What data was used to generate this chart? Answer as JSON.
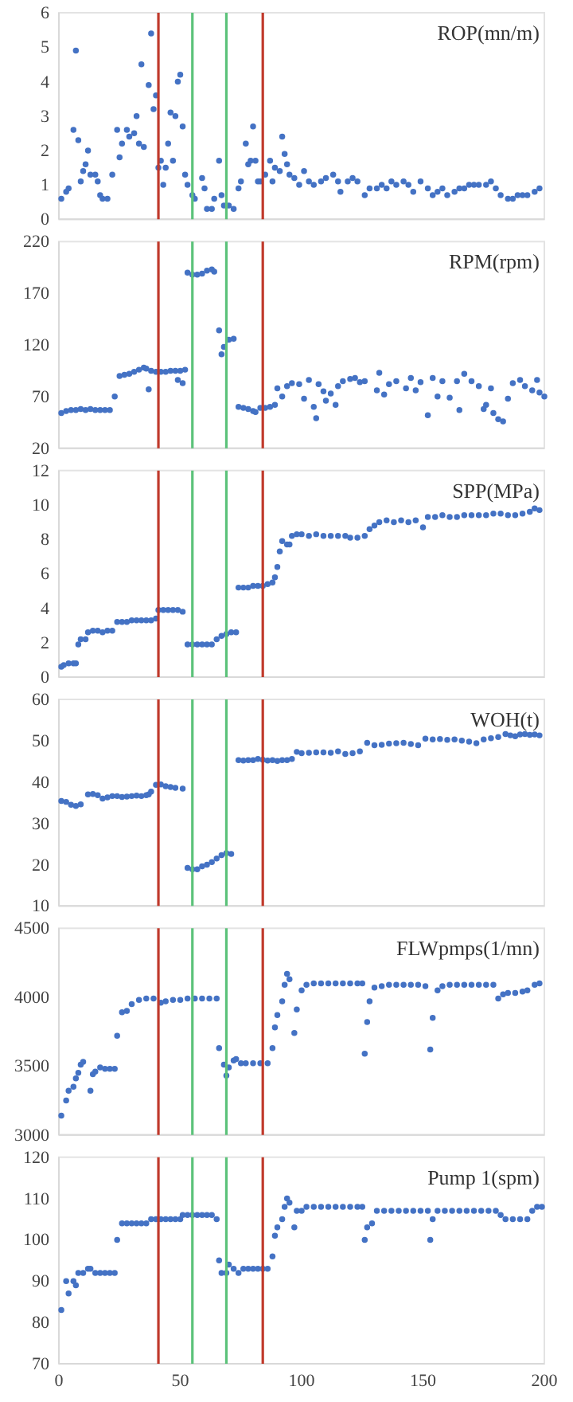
{
  "chart_data": [
    {
      "type": "scatter",
      "title": "ROP(mn/m)",
      "color": "#4472c4",
      "marker": "circle",
      "xlim": [
        0,
        200
      ],
      "xticks": [
        0,
        50,
        100,
        150,
        200
      ],
      "ylim": [
        0,
        6
      ],
      "yticks": [
        0,
        1,
        2,
        3,
        4,
        5,
        6
      ],
      "tick_labels": "y",
      "x": [
        1,
        3,
        4,
        6,
        7,
        8,
        9,
        10,
        11,
        12,
        13,
        15,
        16,
        17,
        18,
        20,
        22,
        24,
        25,
        26,
        28,
        29,
        31,
        32,
        33,
        34,
        35,
        37,
        38,
        39,
        40,
        41,
        42,
        43,
        44,
        45,
        46,
        47,
        48,
        49,
        50,
        51,
        52,
        53,
        55,
        56,
        59,
        60,
        61,
        63,
        64,
        66,
        67,
        68,
        70,
        72,
        74,
        75,
        77,
        78,
        79,
        80,
        81,
        82,
        83,
        85,
        87,
        88,
        89,
        91,
        92,
        93,
        94,
        95,
        97,
        99,
        101,
        103,
        105,
        108,
        110,
        113,
        115,
        116,
        119,
        121,
        123,
        126,
        128,
        131,
        133,
        135,
        137,
        139,
        142,
        144,
        146,
        149,
        152,
        154,
        156,
        158,
        160,
        163,
        165,
        167,
        169,
        171,
        173,
        176,
        178,
        180,
        182,
        185,
        187,
        189,
        191,
        193,
        196,
        198
      ],
      "values": [
        0.6,
        0.8,
        0.9,
        2.6,
        4.9,
        2.3,
        1.1,
        1.4,
        1.6,
        2.0,
        1.3,
        1.3,
        1.1,
        0.7,
        0.6,
        0.6,
        1.3,
        2.6,
        1.8,
        2.2,
        2.6,
        2.4,
        2.5,
        3.0,
        2.2,
        4.5,
        2.1,
        3.9,
        5.4,
        3.2,
        3.6,
        1.5,
        1.7,
        1.0,
        1.5,
        2.2,
        3.1,
        1.7,
        3.0,
        4.0,
        4.2,
        2.7,
        1.3,
        1.0,
        0.7,
        0.6,
        1.2,
        0.9,
        0.3,
        0.3,
        0.6,
        1.7,
        0.7,
        0.4,
        0.4,
        0.3,
        0.9,
        1.1,
        2.2,
        1.6,
        1.7,
        2.7,
        1.7,
        1.1,
        1.1,
        1.3,
        1.7,
        1.1,
        1.5,
        1.4,
        2.4,
        1.9,
        1.6,
        1.3,
        1.2,
        1.0,
        1.4,
        1.1,
        1.0,
        1.1,
        1.2,
        1.3,
        1.1,
        0.8,
        1.1,
        1.2,
        1.1,
        0.7,
        0.9,
        0.9,
        1.0,
        0.9,
        1.1,
        1.0,
        1.1,
        1.0,
        0.8,
        1.1,
        0.9,
        0.7,
        0.8,
        0.9,
        0.7,
        0.8,
        0.9,
        0.9,
        1.0,
        1.0,
        1.0,
        1.0,
        1.1,
        0.9,
        0.7,
        0.6,
        0.6,
        0.7,
        0.7,
        0.7,
        0.8,
        0.9
      ],
      "ref_lines": [
        {
          "axis": "x",
          "value": 41,
          "color": "#c0392b"
        },
        {
          "axis": "x",
          "value": 55,
          "color": "#5cc27a"
        },
        {
          "axis": "x",
          "value": 69,
          "color": "#5cc27a"
        },
        {
          "axis": "x",
          "value": 84,
          "color": "#c0392b"
        }
      ]
    },
    {
      "type": "scatter",
      "title": "RPM(rpm)",
      "color": "#4472c4",
      "marker": "circle",
      "xlim": [
        0,
        200
      ],
      "xticks": [
        0,
        50,
        100,
        150,
        200
      ],
      "ylim": [
        20,
        220
      ],
      "yticks": [
        20,
        70,
        120,
        170,
        220
      ],
      "tick_labels": "y",
      "x": [
        1,
        3,
        5,
        7,
        9,
        11,
        13,
        15,
        17,
        19,
        21,
        23,
        25,
        27,
        29,
        31,
        33,
        35,
        36,
        37,
        38,
        40,
        42,
        44,
        46,
        48,
        49,
        50,
        51,
        52,
        53,
        55,
        57,
        59,
        61,
        63,
        64,
        66,
        67,
        68,
        70,
        72,
        74,
        76,
        78,
        80,
        81,
        83,
        85,
        87,
        89,
        90,
        92,
        94,
        96,
        99,
        101,
        103,
        105,
        106,
        107,
        109,
        110,
        112,
        114,
        115,
        117,
        120,
        122,
        124,
        126,
        131,
        132,
        134,
        136,
        139,
        143,
        145,
        147,
        149,
        152,
        154,
        156,
        158,
        161,
        164,
        165,
        167,
        170,
        173,
        175,
        176,
        178,
        179,
        181,
        183,
        185,
        187,
        190,
        192,
        195,
        197,
        198,
        200
      ],
      "values": [
        54,
        56,
        57,
        57,
        58,
        57,
        58,
        57,
        57,
        57,
        57,
        70,
        90,
        91,
        92,
        94,
        96,
        98,
        97,
        77,
        95,
        94,
        94,
        94,
        95,
        95,
        86,
        95,
        83,
        96,
        190,
        188,
        188,
        189,
        192,
        193,
        191,
        134,
        111,
        118,
        125,
        126,
        60,
        59,
        58,
        56,
        55,
        59,
        59,
        60,
        62,
        78,
        70,
        80,
        83,
        82,
        68,
        86,
        60,
        49,
        82,
        75,
        66,
        73,
        62,
        80,
        85,
        87,
        88,
        84,
        85,
        76,
        93,
        72,
        82,
        85,
        78,
        88,
        76,
        84,
        52,
        88,
        70,
        85,
        69,
        85,
        57,
        92,
        85,
        80,
        58,
        62,
        78,
        54,
        48,
        46,
        68,
        83,
        86,
        80,
        76,
        86,
        74,
        70
      ],
      "ref_lines": [
        {
          "axis": "x",
          "value": 41,
          "color": "#c0392b"
        },
        {
          "axis": "x",
          "value": 55,
          "color": "#5cc27a"
        },
        {
          "axis": "x",
          "value": 69,
          "color": "#5cc27a"
        },
        {
          "axis": "x",
          "value": 84,
          "color": "#c0392b"
        }
      ]
    },
    {
      "type": "scatter",
      "title": "SPP(MPa)",
      "color": "#4472c4",
      "marker": "circle",
      "xlim": [
        0,
        200
      ],
      "xticks": [
        0,
        50,
        100,
        150,
        200
      ],
      "ylim": [
        0,
        12
      ],
      "yticks": [
        0,
        2,
        4,
        6,
        8,
        10,
        12
      ],
      "tick_labels": "y",
      "x": [
        1,
        2,
        4,
        6,
        7,
        8,
        9,
        11,
        12,
        14,
        16,
        18,
        20,
        22,
        24,
        26,
        28,
        30,
        32,
        34,
        36,
        38,
        40,
        41,
        43,
        45,
        47,
        49,
        51,
        53,
        55,
        57,
        59,
        61,
        63,
        65,
        67,
        69,
        71,
        73,
        74,
        76,
        78,
        80,
        82,
        84,
        86,
        88,
        89,
        90,
        91,
        92,
        94,
        95,
        96,
        98,
        100,
        103,
        106,
        109,
        112,
        115,
        118,
        120,
        123,
        126,
        128,
        130,
        132,
        135,
        138,
        141,
        144,
        147,
        150,
        152,
        155,
        158,
        161,
        164,
        167,
        170,
        173,
        176,
        179,
        182,
        185,
        188,
        191,
        194,
        196,
        198
      ],
      "values": [
        0.6,
        0.7,
        0.8,
        0.8,
        0.8,
        1.9,
        2.2,
        2.2,
        2.6,
        2.7,
        2.7,
        2.6,
        2.7,
        2.7,
        3.2,
        3.2,
        3.2,
        3.3,
        3.3,
        3.3,
        3.3,
        3.3,
        3.4,
        3.9,
        3.9,
        3.9,
        3.9,
        3.9,
        3.8,
        1.9,
        1.9,
        1.9,
        1.9,
        1.9,
        1.9,
        2.2,
        2.4,
        2.5,
        2.6,
        2.6,
        5.2,
        5.2,
        5.2,
        5.3,
        5.3,
        5.3,
        5.4,
        5.5,
        5.8,
        6.4,
        7.3,
        7.9,
        7.7,
        7.7,
        8.2,
        8.3,
        8.3,
        8.2,
        8.3,
        8.2,
        8.2,
        8.2,
        8.2,
        8.1,
        8.1,
        8.2,
        8.6,
        8.8,
        9.0,
        9.1,
        9.0,
        9.1,
        9.0,
        9.1,
        8.7,
        9.3,
        9.3,
        9.4,
        9.3,
        9.3,
        9.4,
        9.4,
        9.4,
        9.4,
        9.5,
        9.5,
        9.4,
        9.4,
        9.5,
        9.6,
        9.8,
        9.7
      ],
      "ref_lines": [
        {
          "axis": "x",
          "value": 41,
          "color": "#c0392b"
        },
        {
          "axis": "x",
          "value": 55,
          "color": "#5cc27a"
        },
        {
          "axis": "x",
          "value": 69,
          "color": "#5cc27a"
        },
        {
          "axis": "x",
          "value": 84,
          "color": "#c0392b"
        }
      ]
    },
    {
      "type": "scatter",
      "title": "WOH(t)",
      "color": "#4472c4",
      "marker": "circle",
      "xlim": [
        0,
        200
      ],
      "xticks": [
        0,
        50,
        100,
        150,
        200
      ],
      "ylim": [
        10,
        60
      ],
      "yticks": [
        10,
        20,
        30,
        40,
        50,
        60
      ],
      "tick_labels": "y",
      "x": [
        1,
        3,
        5,
        7,
        9,
        12,
        14,
        16,
        18,
        20,
        22,
        24,
        26,
        28,
        30,
        32,
        34,
        36,
        37,
        38,
        40,
        42,
        44,
        46,
        48,
        51,
        53,
        55,
        57,
        59,
        61,
        63,
        65,
        67,
        69,
        71,
        74,
        76,
        78,
        80,
        82,
        84,
        86,
        88,
        90,
        92,
        94,
        96,
        98,
        100,
        103,
        106,
        109,
        112,
        115,
        118,
        121,
        124,
        127,
        130,
        133,
        136,
        139,
        142,
        145,
        148,
        151,
        154,
        157,
        160,
        163,
        166,
        169,
        172,
        175,
        178,
        181,
        184,
        186,
        188,
        190,
        192,
        194,
        196,
        198
      ],
      "values": [
        35.4,
        35.2,
        34.5,
        34.2,
        34.6,
        37.0,
        37.1,
        36.8,
        36.0,
        36.3,
        36.6,
        36.6,
        36.4,
        36.5,
        36.6,
        36.7,
        36.6,
        36.8,
        37.0,
        37.7,
        39.3,
        39.4,
        39.0,
        38.8,
        38.6,
        38.4,
        19.2,
        18.9,
        18.9,
        19.6,
        20.0,
        20.6,
        21.5,
        22.3,
        22.8,
        22.6,
        45.3,
        45.2,
        45.3,
        45.3,
        45.6,
        45.4,
        45.2,
        45.3,
        45.1,
        45.3,
        45.3,
        45.6,
        47.3,
        47.0,
        47.1,
        47.2,
        47.2,
        47.1,
        47.4,
        46.8,
        47.0,
        47.4,
        49.5,
        48.9,
        49.0,
        49.3,
        49.4,
        49.5,
        49.2,
        48.9,
        50.5,
        50.3,
        50.4,
        50.2,
        50.3,
        50.0,
        49.8,
        49.4,
        50.3,
        50.6,
        50.9,
        51.6,
        51.3,
        51.1,
        51.5,
        51.6,
        51.4,
        51.5,
        51.3
      ],
      "ref_lines": [
        {
          "axis": "x",
          "value": 41,
          "color": "#c0392b"
        },
        {
          "axis": "x",
          "value": 55,
          "color": "#5cc27a"
        },
        {
          "axis": "x",
          "value": 69,
          "color": "#5cc27a"
        },
        {
          "axis": "x",
          "value": 84,
          "color": "#c0392b"
        }
      ]
    },
    {
      "type": "scatter",
      "title": "FLWpmps(1/mn)",
      "color": "#4472c4",
      "marker": "circle",
      "xlim": [
        0,
        200
      ],
      "xticks": [
        0,
        50,
        100,
        150,
        200
      ],
      "ylim": [
        3000,
        4500
      ],
      "yticks": [
        3000,
        3500,
        4000,
        4500
      ],
      "tick_labels": "y",
      "x": [
        1,
        3,
        4,
        6,
        7,
        8,
        9,
        10,
        13,
        14,
        15,
        17,
        19,
        21,
        23,
        24,
        26,
        28,
        30,
        33,
        36,
        39,
        42,
        44,
        47,
        50,
        53,
        56,
        59,
        62,
        65,
        66,
        68,
        69,
        70,
        72,
        73,
        75,
        77,
        80,
        83,
        86,
        88,
        89,
        90,
        92,
        93,
        94,
        95,
        97,
        98,
        100,
        102,
        105,
        108,
        111,
        114,
        117,
        120,
        123,
        125,
        126,
        127,
        128,
        130,
        133,
        136,
        139,
        142,
        145,
        148,
        151,
        153,
        154,
        156,
        158,
        161,
        164,
        167,
        170,
        173,
        176,
        179,
        181,
        183,
        185,
        188,
        191,
        193,
        196,
        198
      ],
      "values": [
        3140,
        3250,
        3320,
        3350,
        3410,
        3450,
        3510,
        3530,
        3320,
        3440,
        3460,
        3490,
        3480,
        3480,
        3480,
        3720,
        3890,
        3900,
        3950,
        3980,
        3990,
        3990,
        3960,
        3970,
        3980,
        3980,
        3990,
        3990,
        3990,
        3990,
        3990,
        3630,
        3510,
        3430,
        3490,
        3540,
        3550,
        3520,
        3520,
        3520,
        3520,
        3520,
        3630,
        3780,
        3870,
        3970,
        4090,
        4170,
        4130,
        3740,
        3910,
        4050,
        4090,
        4100,
        4100,
        4100,
        4100,
        4100,
        4100,
        4100,
        4100,
        3590,
        3820,
        3970,
        4070,
        4080,
        4090,
        4090,
        4090,
        4090,
        4090,
        4080,
        3620,
        3850,
        4050,
        4080,
        4090,
        4090,
        4090,
        4090,
        4090,
        4090,
        4090,
        3990,
        4020,
        4030,
        4030,
        4040,
        4050,
        4090,
        4100
      ],
      "ref_lines": [
        {
          "axis": "x",
          "value": 41,
          "color": "#c0392b"
        },
        {
          "axis": "x",
          "value": 55,
          "color": "#5cc27a"
        },
        {
          "axis": "x",
          "value": 69,
          "color": "#5cc27a"
        },
        {
          "axis": "x",
          "value": 84,
          "color": "#c0392b"
        }
      ]
    },
    {
      "type": "scatter",
      "title": "Pump 1(spm)",
      "color": "#4472c4",
      "marker": "circle",
      "xlim": [
        0,
        200
      ],
      "xticks": [
        0,
        50,
        100,
        150,
        200
      ],
      "ylim": [
        70,
        120
      ],
      "yticks": [
        70,
        80,
        90,
        100,
        110,
        120
      ],
      "x": [
        1,
        3,
        4,
        6,
        7,
        8,
        10,
        12,
        13,
        15,
        17,
        19,
        21,
        23,
        24,
        26,
        28,
        30,
        32,
        34,
        36,
        38,
        40,
        42,
        44,
        46,
        48,
        50,
        51,
        53,
        55,
        57,
        59,
        61,
        63,
        65,
        66,
        67,
        69,
        70,
        72,
        74,
        76,
        78,
        80,
        82,
        84,
        86,
        88,
        89,
        90,
        92,
        93,
        94,
        95,
        97,
        98,
        100,
        102,
        105,
        108,
        111,
        114,
        117,
        120,
        123,
        125,
        126,
        127,
        129,
        131,
        134,
        137,
        140,
        143,
        146,
        149,
        152,
        153,
        154,
        156,
        159,
        162,
        165,
        168,
        171,
        174,
        177,
        180,
        182,
        184,
        187,
        190,
        193,
        195,
        197,
        199
      ],
      "values": [
        83,
        90,
        87,
        90,
        89,
        92,
        92,
        93,
        93,
        92,
        92,
        92,
        92,
        92,
        100,
        104,
        104,
        104,
        104,
        104,
        104,
        105,
        105,
        105,
        105,
        105,
        105,
        105,
        106,
        106,
        106,
        106,
        106,
        106,
        106,
        105,
        95,
        92,
        92,
        94,
        93,
        92,
        93,
        93,
        93,
        93,
        93,
        93,
        96,
        101,
        103,
        105,
        108,
        110,
        109,
        103,
        107,
        107,
        108,
        108,
        108,
        108,
        108,
        108,
        108,
        108,
        108,
        100,
        103,
        104,
        107,
        107,
        107,
        107,
        107,
        107,
        107,
        107,
        100,
        105,
        107,
        107,
        107,
        107,
        107,
        107,
        107,
        107,
        107,
        106,
        105,
        105,
        105,
        105,
        107,
        108,
        108
      ],
      "ref_lines": [
        {
          "axis": "x",
          "value": 41,
          "color": "#c0392b"
        },
        {
          "axis": "x",
          "value": 55,
          "color": "#5cc27a"
        },
        {
          "axis": "x",
          "value": 69,
          "color": "#5cc27a"
        },
        {
          "axis": "x",
          "value": 84,
          "color": "#c0392b"
        }
      ]
    }
  ]
}
